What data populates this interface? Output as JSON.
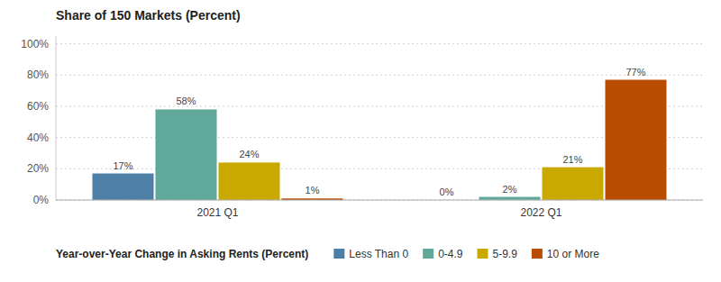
{
  "chart_data": {
    "type": "bar",
    "title": "Share of 150 Markets (Percent)",
    "xlabel": "Year-over-Year Change in Asking Rents (Percent)",
    "categories": [
      "2021 Q1",
      "2022 Q1"
    ],
    "series": [
      {
        "name": "Less Than 0",
        "color": "#4e7fa6",
        "values": [
          17,
          0
        ],
        "value_labels": [
          "17%",
          "0%"
        ]
      },
      {
        "name": "0-4.9",
        "color": "#5fa89a",
        "values": [
          58,
          2
        ],
        "value_labels": [
          "58%",
          "2%"
        ]
      },
      {
        "name": "5-9.9",
        "color": "#c9a800",
        "values": [
          24,
          21
        ],
        "value_labels": [
          "24%",
          "21%"
        ]
      },
      {
        "name": "10 or More",
        "color": "#b84c00",
        "values": [
          1,
          77
        ],
        "value_labels": [
          "1%",
          "77%"
        ]
      }
    ],
    "ylim": [
      0,
      105
    ],
    "yticks": [
      {
        "value": 0,
        "label": "0%"
      },
      {
        "value": 20,
        "label": "20%"
      },
      {
        "value": 40,
        "label": "40%"
      },
      {
        "value": 60,
        "label": "60%"
      },
      {
        "value": 80,
        "label": "80%"
      },
      {
        "value": 100,
        "label": "100%"
      }
    ],
    "grid": true,
    "legend": "bottom",
    "data_labels": true
  }
}
